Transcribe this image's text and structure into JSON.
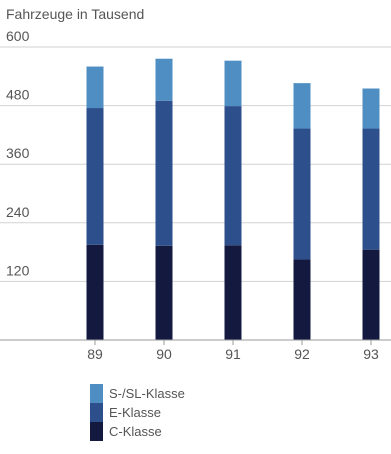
{
  "chart_data": {
    "type": "bar",
    "stacked": true,
    "unit": "Fahrzeuge in Tausend",
    "categories": [
      "89",
      "90",
      "91",
      "92",
      "93"
    ],
    "series": [
      {
        "name": "C-Klasse",
        "color": "#14193f",
        "values": [
          195,
          193,
          194,
          165,
          185
        ]
      },
      {
        "name": "E-Klasse",
        "color": "#2d4f8c",
        "values": [
          280,
          297,
          285,
          268,
          248
        ]
      },
      {
        "name": "S-/SL-Klasse",
        "color": "#4f8ec2",
        "values": [
          85,
          86,
          93,
          93,
          82
        ]
      }
    ],
    "yticks": [
      120,
      240,
      360,
      480,
      600
    ],
    "ylim": [
      0,
      600
    ],
    "grid": true,
    "legend_position": "bottom"
  }
}
